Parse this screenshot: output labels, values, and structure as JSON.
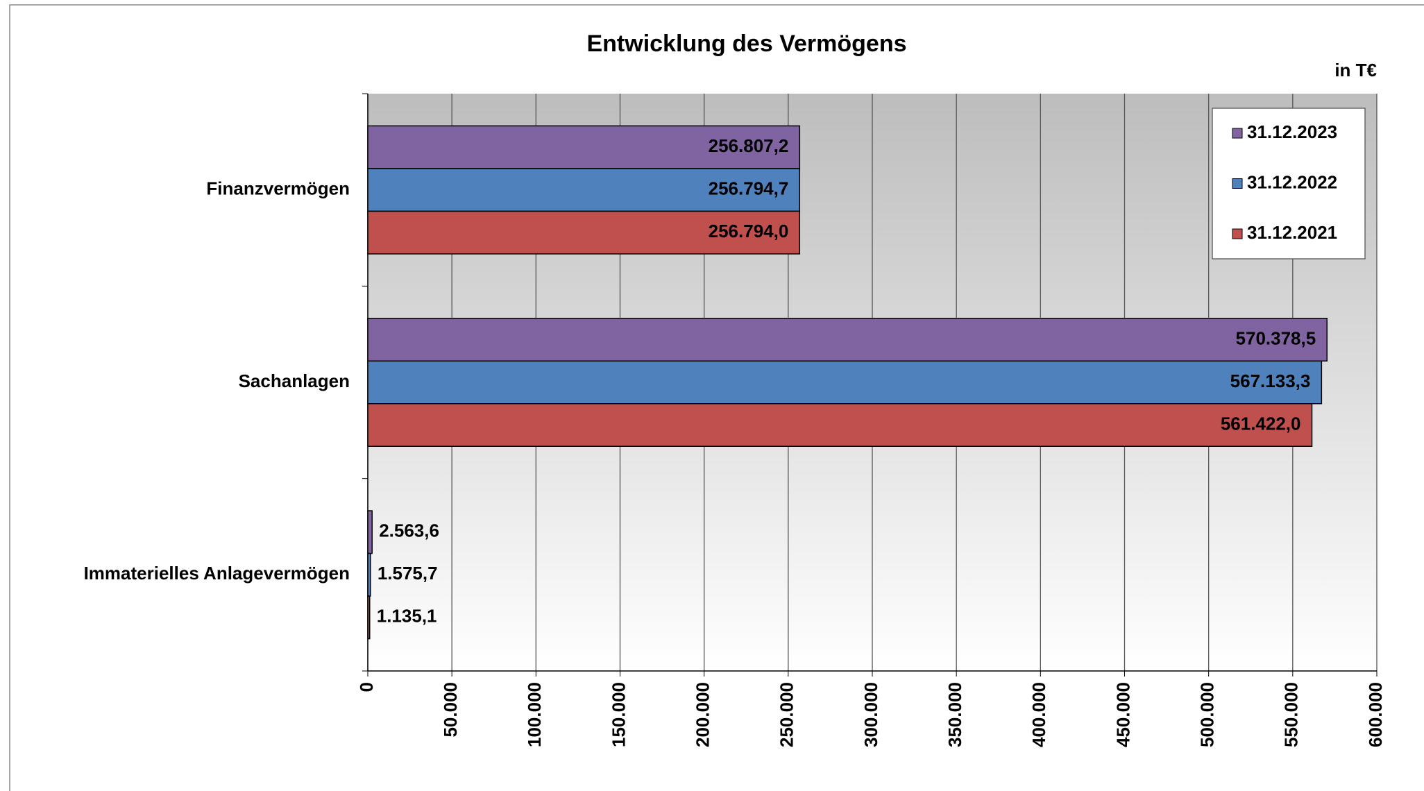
{
  "chart_data": {
    "type": "hbar",
    "title": "Entwicklung des Vermögens",
    "unit_label": "in T€",
    "categories": [
      "Finanzvermögen",
      "Sachanlagen",
      "Immaterielles Anlagevermögen"
    ],
    "series": [
      {
        "name": "31.12.2023",
        "color": "#8064a2",
        "values": [
          256807.2,
          570378.5,
          2563.6
        ],
        "value_labels": [
          "256.807,2",
          "570.378,5",
          "2.563,6"
        ]
      },
      {
        "name": "31.12.2022",
        "color": "#4f81bd",
        "values": [
          256794.7,
          567133.3,
          1575.7
        ],
        "value_labels": [
          "256.794,7",
          "567.133,3",
          "1.575,7"
        ]
      },
      {
        "name": "31.12.2021",
        "color": "#c0504d",
        "values": [
          256794.0,
          561422.0,
          1135.1
        ],
        "value_labels": [
          "256.794,0",
          "561.422,0",
          "1.135,1"
        ]
      }
    ],
    "xlim": [
      0,
      600000
    ],
    "xticks": [
      0,
      {
        "value": 50000,
        "label": "50.000"
      },
      {
        "value": 100000,
        "label": "100.000"
      },
      {
        "value": 150000,
        "label": "150.000"
      },
      {
        "value": 200000,
        "label": "200.000"
      },
      {
        "value": 250000,
        "label": "250.000"
      },
      {
        "value": 300000,
        "label": "300.000"
      },
      {
        "value": 350000,
        "label": "350.000"
      },
      {
        "value": 400000,
        "label": "400.000"
      },
      {
        "value": 450000,
        "label": "450.000"
      },
      {
        "value": 500000,
        "label": "500.000"
      },
      {
        "value": 550000,
        "label": "550.000"
      },
      {
        "value": 600000,
        "label": "600.000"
      }
    ],
    "grid": true,
    "legend": "top-right"
  }
}
